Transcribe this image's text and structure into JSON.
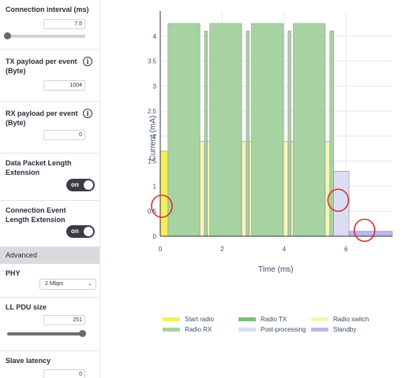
{
  "sidebar": {
    "connection_interval": {
      "label": "Connection interval (ms)",
      "value": "7.5",
      "slider_fraction": 0.0
    },
    "tx_payload": {
      "label_line1": "TX payload per event",
      "label_line2": "(Byte)",
      "value": "1004",
      "info_icon": "info-icon"
    },
    "rx_payload": {
      "label_line1": "RX payload per event",
      "label_line2": "(Byte)",
      "value": "0",
      "info_icon": "info-icon"
    },
    "dple": {
      "label_line1": "Data Packet Length",
      "label_line2": "Extension",
      "toggle_label": "on"
    },
    "cele": {
      "label_line1": "Connection Event",
      "label_line2": "Length Extension",
      "toggle_label": "on"
    },
    "advanced": {
      "label": "Advanced"
    },
    "phy": {
      "label": "PHY",
      "selected": "2 Mbps",
      "chevron_icon": "chevron-down-icon"
    },
    "ll_pdu": {
      "label": "LL PDU size",
      "value": "251",
      "slider_fraction": 1.0
    },
    "slave_latency": {
      "label": "Slave latency",
      "value": "0"
    }
  },
  "chart_data": {
    "type": "area",
    "xlabel": "Time (ms)",
    "ylabel": "Current (mA)",
    "x_ticks": [
      "0",
      "2",
      "4",
      "6"
    ],
    "y_ticks": [
      "0",
      "0.5",
      "1",
      "1.5",
      "2",
      "2.5",
      "3",
      "3.5",
      "4"
    ],
    "xlim": [
      0,
      7.5
    ],
    "ylim": [
      0,
      4.5
    ],
    "grid": true,
    "legend_position": "bottom",
    "series": [
      {
        "name": "Start radio",
        "color": "#f5ef5a",
        "segments": [
          {
            "x0": 0.0,
            "x1": 0.25,
            "y": 1.7
          }
        ]
      },
      {
        "name": "Radio TX",
        "color": "#a7d3a3",
        "segments": [
          {
            "x0": 0.25,
            "x1": 1.28,
            "y": 4.25
          },
          {
            "x0": 1.6,
            "x1": 2.63,
            "y": 4.25
          },
          {
            "x0": 2.95,
            "x1": 3.98,
            "y": 4.25
          },
          {
            "x0": 4.3,
            "x1": 5.33,
            "y": 4.25
          }
        ]
      },
      {
        "name": "Radio switch",
        "color": "#f7f5b8",
        "segments": [
          {
            "x0": 1.28,
            "x1": 1.43,
            "y": 1.9
          },
          {
            "x0": 1.52,
            "x1": 1.6,
            "y": 1.9
          },
          {
            "x0": 2.63,
            "x1": 2.78,
            "y": 1.9
          },
          {
            "x0": 2.87,
            "x1": 2.95,
            "y": 1.9
          },
          {
            "x0": 3.98,
            "x1": 4.13,
            "y": 1.9
          },
          {
            "x0": 4.22,
            "x1": 4.3,
            "y": 1.9
          },
          {
            "x0": 5.33,
            "x1": 5.48,
            "y": 1.9
          }
        ]
      },
      {
        "name": "Radio RX",
        "color": "#a7d3a3",
        "segments": [
          {
            "x0": 1.43,
            "x1": 1.52,
            "y": 4.1
          },
          {
            "x0": 2.78,
            "x1": 2.87,
            "y": 4.1
          },
          {
            "x0": 4.13,
            "x1": 4.22,
            "y": 4.1
          },
          {
            "x0": 5.48,
            "x1": 5.6,
            "y": 4.1
          }
        ]
      },
      {
        "name": "Post-processing",
        "color": "#dcdcf5",
        "segments": [
          {
            "x0": 5.6,
            "x1": 6.1,
            "y": 1.3
          }
        ]
      },
      {
        "name": "Standby",
        "color": "#b9b8ea",
        "segments": [
          {
            "x0": 6.1,
            "x1": 7.5,
            "y": 0.1
          }
        ]
      }
    ],
    "annotations": [
      {
        "type": "circle",
        "x": 0.05,
        "y": 0.6,
        "color": "#d93030"
      },
      {
        "type": "circle",
        "x": 5.75,
        "y": 0.72,
        "color": "#d93030"
      },
      {
        "type": "circle",
        "x": 6.6,
        "y": 0.12,
        "color": "#d93030"
      }
    ]
  },
  "legend": [
    {
      "name": "Start radio",
      "color": "#f5ef5a"
    },
    {
      "name": "Radio TX",
      "color": "#7dbf74"
    },
    {
      "name": "Radio switch",
      "color": "#f7f5b8"
    },
    {
      "name": "Radio RX",
      "color": "#a7d3a3"
    },
    {
      "name": "Post-processing",
      "color": "#dcdcf5"
    },
    {
      "name": "Standby",
      "color": "#b9b8ea"
    }
  ]
}
